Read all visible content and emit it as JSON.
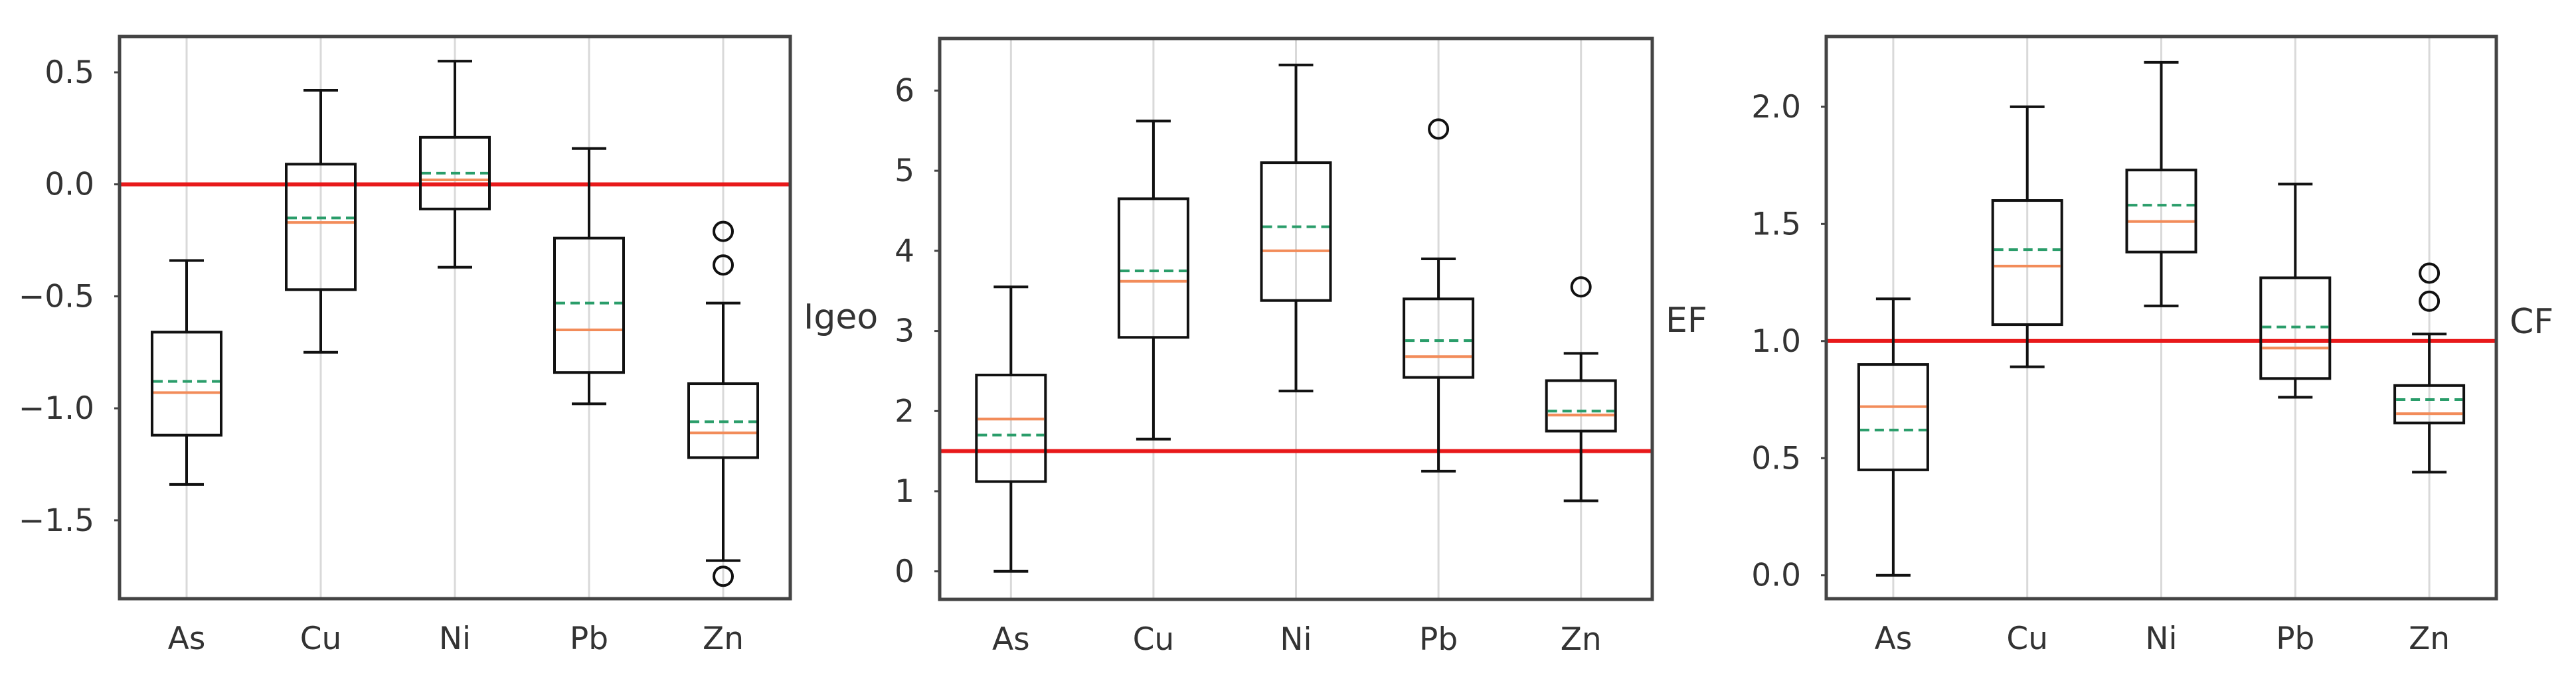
{
  "chart_data": [
    {
      "type": "box",
      "ylabel": "Igeo",
      "categories": [
        "As",
        "Cu",
        "Ni",
        "Pb",
        "Zn"
      ],
      "ylim": [
        -1.85,
        0.66
      ],
      "yticks": [
        0.5,
        0.0,
        -0.5,
        -1.0,
        -1.5
      ],
      "ytick_labels": [
        "0.5",
        "0.0",
        "−0.5",
        "−1.0",
        "−1.5"
      ],
      "reference_line": 0.0,
      "grid": "vertical",
      "boxes": [
        {
          "name": "As",
          "whisker_low": -1.34,
          "q1": -1.12,
          "median": -0.93,
          "mean": -0.88,
          "q3": -0.66,
          "whisker_high": -0.34,
          "outliers": []
        },
        {
          "name": "Cu",
          "whisker_low": -0.75,
          "q1": -0.47,
          "median": -0.17,
          "mean": -0.15,
          "q3": 0.09,
          "whisker_high": 0.42,
          "outliers": []
        },
        {
          "name": "Ni",
          "whisker_low": -0.37,
          "q1": -0.11,
          "median": 0.02,
          "mean": 0.05,
          "q3": 0.21,
          "whisker_high": 0.55,
          "outliers": []
        },
        {
          "name": "Pb",
          "whisker_low": -0.98,
          "q1": -0.84,
          "median": -0.65,
          "mean": -0.53,
          "q3": -0.24,
          "whisker_high": 0.16,
          "outliers": []
        },
        {
          "name": "Zn",
          "whisker_low": -1.68,
          "q1": -1.22,
          "median": -1.11,
          "mean": -1.06,
          "q3": -0.89,
          "whisker_high": -0.53,
          "outliers": [
            -0.21,
            -0.36,
            -1.75
          ]
        }
      ]
    },
    {
      "type": "box",
      "ylabel": "EF",
      "categories": [
        "As",
        "Cu",
        "Ni",
        "Pb",
        "Zn"
      ],
      "ylim": [
        -0.35,
        6.65
      ],
      "yticks": [
        0,
        1,
        2,
        3,
        4,
        5,
        6
      ],
      "ytick_labels": [
        "0",
        "1",
        "2",
        "3",
        "4",
        "5",
        "6"
      ],
      "reference_line": 1.5,
      "grid": "vertical",
      "boxes": [
        {
          "name": "As",
          "whisker_low": 0.0,
          "q1": 1.12,
          "median": 1.9,
          "mean": 1.7,
          "q3": 2.45,
          "whisker_high": 3.55,
          "outliers": []
        },
        {
          "name": "Cu",
          "whisker_low": 1.65,
          "q1": 2.92,
          "median": 3.62,
          "mean": 3.75,
          "q3": 4.65,
          "whisker_high": 5.62,
          "outliers": []
        },
        {
          "name": "Ni",
          "whisker_low": 2.25,
          "q1": 3.38,
          "median": 4.0,
          "mean": 4.3,
          "q3": 5.1,
          "whisker_high": 6.32,
          "outliers": []
        },
        {
          "name": "Pb",
          "whisker_low": 1.25,
          "q1": 2.42,
          "median": 2.68,
          "mean": 2.88,
          "q3": 3.4,
          "whisker_high": 3.9,
          "outliers": [
            5.52
          ]
        },
        {
          "name": "Zn",
          "whisker_low": 0.88,
          "q1": 1.75,
          "median": 1.95,
          "mean": 2.0,
          "q3": 2.38,
          "whisker_high": 2.72,
          "outliers": [
            3.55
          ]
        }
      ]
    },
    {
      "type": "box",
      "ylabel": "CF",
      "categories": [
        "As",
        "Cu",
        "Ni",
        "Pb",
        "Zn"
      ],
      "ylim": [
        -0.1,
        2.3
      ],
      "yticks": [
        0.0,
        0.5,
        1.0,
        1.5,
        2.0
      ],
      "ytick_labels": [
        "0.0",
        "0.5",
        "1.0",
        "1.5",
        "2.0"
      ],
      "reference_line": 1.0,
      "grid": "vertical",
      "boxes": [
        {
          "name": "As",
          "whisker_low": 0.0,
          "q1": 0.45,
          "median": 0.72,
          "mean": 0.62,
          "q3": 0.9,
          "whisker_high": 1.18,
          "outliers": []
        },
        {
          "name": "Cu",
          "whisker_low": 0.89,
          "q1": 1.07,
          "median": 1.32,
          "mean": 1.39,
          "q3": 1.6,
          "whisker_high": 2.0,
          "outliers": []
        },
        {
          "name": "Ni",
          "whisker_low": 1.15,
          "q1": 1.38,
          "median": 1.51,
          "mean": 1.58,
          "q3": 1.73,
          "whisker_high": 2.19,
          "outliers": []
        },
        {
          "name": "Pb",
          "whisker_low": 0.76,
          "q1": 0.84,
          "median": 0.97,
          "mean": 1.06,
          "q3": 1.27,
          "whisker_high": 1.67,
          "outliers": []
        },
        {
          "name": "Zn",
          "whisker_low": 0.44,
          "q1": 0.65,
          "median": 0.69,
          "mean": 0.75,
          "q3": 0.81,
          "whisker_high": 1.03,
          "outliers": [
            1.29,
            1.17
          ]
        }
      ]
    }
  ],
  "colors": {
    "box": "#111111",
    "median": "#f28c5a",
    "mean": "#2a9d6a",
    "reference": "#e8191a",
    "grid": "#d9d9d9",
    "frame": "#444444"
  }
}
